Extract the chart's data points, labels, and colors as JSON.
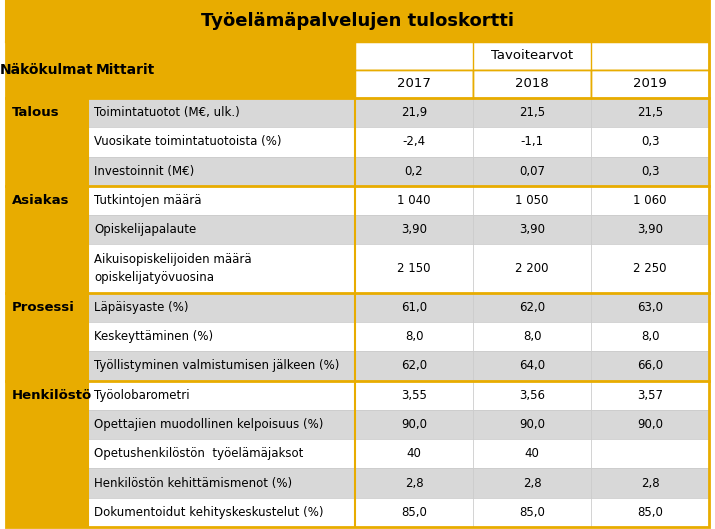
{
  "title": "Työelämäpalvelujen tuloskortti",
  "nakokulmat_label": "Näkökulmat",
  "mittarit_label": "Mittarit",
  "tavoitearvot_label": "Tavoitearvot",
  "year_headers": [
    "2017",
    "2018",
    "2019"
  ],
  "sections": [
    {
      "name": "Talous",
      "rows": [
        {
          "mittari": "Toimintatuotot (M€, ulk.)",
          "v2017": "21,9",
          "v2018": "21,5",
          "v2019": "21,5"
        },
        {
          "mittari": "Vuosikate toimintatuotoista (%)",
          "v2017": "-2,4",
          "v2018": "-1,1",
          "v2019": "0,3"
        },
        {
          "mittari": "Investoinnit (M€)",
          "v2017": "0,2",
          "v2018": "0,07",
          "v2019": "0,3"
        }
      ]
    },
    {
      "name": "Asiakas",
      "rows": [
        {
          "mittari": "Tutkintojen määrä",
          "v2017": "1 040",
          "v2018": "1 050",
          "v2019": "1 060"
        },
        {
          "mittari": "Opiskelijapalaute",
          "v2017": "3,90",
          "v2018": "3,90",
          "v2019": "3,90"
        },
        {
          "mittari": "Aikuisopiskelijoiden määrä\nopiskelijatyövuosina",
          "v2017": "2 150",
          "v2018": "2 200",
          "v2019": "2 250"
        }
      ]
    },
    {
      "name": "Prosessi",
      "rows": [
        {
          "mittari": "Läpäisyaste (%)",
          "v2017": "61,0",
          "v2018": "62,0",
          "v2019": "63,0"
        },
        {
          "mittari": "Keskeyttäminen (%)",
          "v2017": "8,0",
          "v2018": "8,0",
          "v2019": "8,0"
        },
        {
          "mittari": "Työllistyminen valmistumisen jälkeen (%)",
          "v2017": "62,0",
          "v2018": "64,0",
          "v2019": "66,0"
        }
      ]
    },
    {
      "name": "Henkilöstö",
      "rows": [
        {
          "mittari": "Työolobarometri",
          "v2017": "3,55",
          "v2018": "3,56",
          "v2019": "3,57"
        },
        {
          "mittari": "Opettajien muodollinen kelpoisuus (%)",
          "v2017": "90,0",
          "v2018": "90,0",
          "v2019": "90,0"
        },
        {
          "mittari": "Opetushenkilöstön  työelämäjaksot",
          "v2017": "40",
          "v2018": "40",
          "v2019": ""
        },
        {
          "mittari": "Henkilöstön kehittämismenot (%)",
          "v2017": "2,8",
          "v2018": "2,8",
          "v2019": "2,8"
        },
        {
          "mittari": "Dokumentoidut kehityskeskustelut (%)",
          "v2017": "85,0",
          "v2018": "85,0",
          "v2019": "85,0"
        }
      ]
    }
  ],
  "color_gold": "#E8AC00",
  "color_white": "#FFFFFF",
  "color_light_gray": "#EBEBEB",
  "color_dark_gray": "#D8D8D8",
  "color_black": "#000000",
  "color_border": "#B8860B"
}
